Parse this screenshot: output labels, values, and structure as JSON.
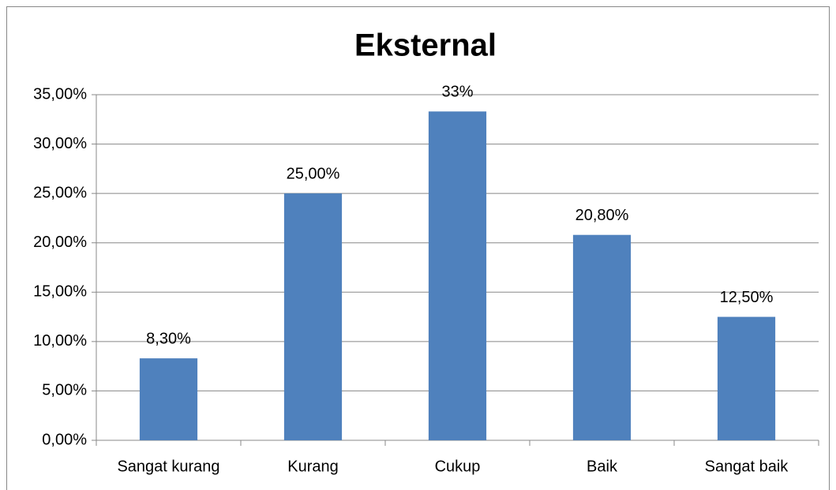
{
  "chart_data": {
    "type": "bar",
    "title": "Eksternal",
    "categories": [
      "Sangat kurang",
      "Kurang",
      "Cukup",
      "Baik",
      "Sangat baik"
    ],
    "values": [
      8.3,
      25,
      33.3,
      20.8,
      12.5
    ],
    "value_labels": [
      "8,30%",
      "25,00%",
      "33%",
      "20,80%",
      "12,50%"
    ],
    "color": "#4f81bd",
    "ylim": [
      0,
      35
    ],
    "yticks": [
      {
        "value": 0,
        "label": "0,00%"
      },
      {
        "value": 5,
        "label": "5,00%"
      },
      {
        "value": 10,
        "label": "10,00%"
      },
      {
        "value": 15,
        "label": "15,00%"
      },
      {
        "value": 20,
        "label": "20,00%"
      },
      {
        "value": 25,
        "label": "25,00%"
      },
      {
        "value": 30,
        "label": "30,00%"
      },
      {
        "value": 35,
        "label": "35,00%"
      }
    ],
    "grid": true
  }
}
